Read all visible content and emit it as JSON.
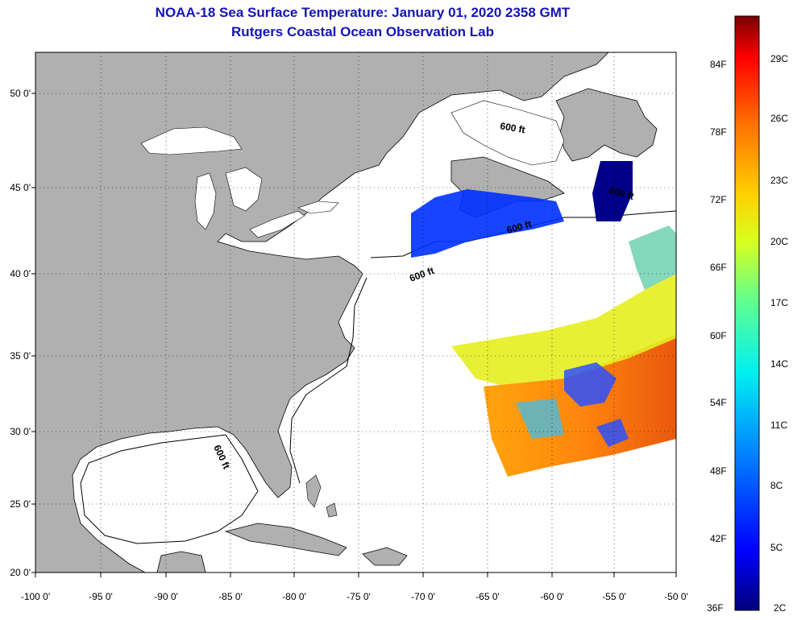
{
  "header": {
    "title": "NOAA-18 Sea Surface Temperature:  January 01, 2020 2358 GMT",
    "subtitle": "Rutgers Coastal Ocean Observation Lab"
  },
  "map": {
    "lon_labels": [
      "-100 0'",
      "-95 0'",
      "-90 0'",
      "-85 0'",
      "-80 0'",
      "-75 0'",
      "-70 0'",
      "-65 0'",
      "-60 0'",
      "-55 0'",
      "-50 0'"
    ],
    "lat_labels": [
      "50 0'",
      "45 0'",
      "40 0'",
      "35 0'",
      "30 0'",
      "25 0'",
      "20 0'"
    ],
    "contour_labels": [
      "600 ft",
      "600 ft",
      "600 ft",
      "600 ft",
      "600 ft"
    ],
    "land_color": "#b0b0b0",
    "ocean_color": "#ffffff"
  },
  "colorbar": {
    "fahrenheit_labels": [
      "84F",
      "78F",
      "72F",
      "66F",
      "60F",
      "54F",
      "48F",
      "42F",
      "36F"
    ],
    "celsius_labels": [
      "29C",
      "26C",
      "23C",
      "20C",
      "17C",
      "14C",
      "11C",
      "8C",
      "5C",
      "2C"
    ]
  }
}
